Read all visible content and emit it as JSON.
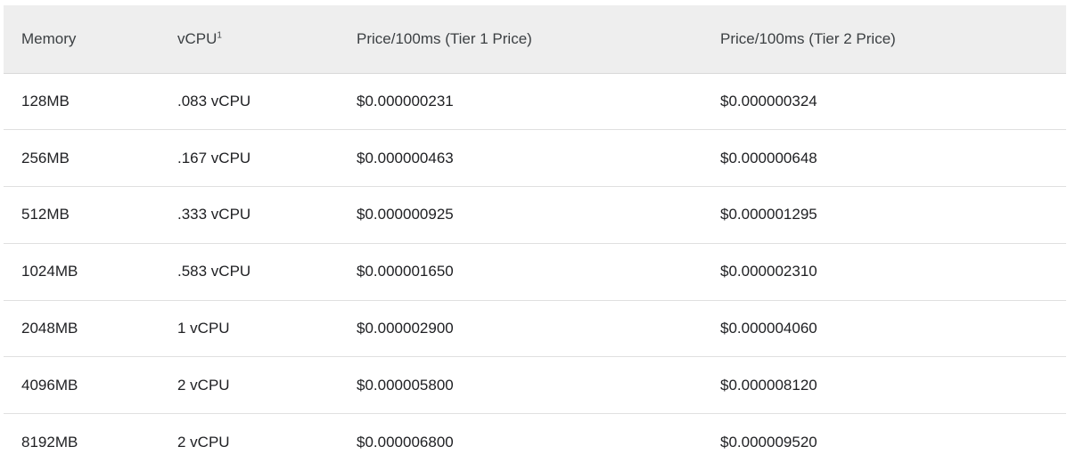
{
  "table": {
    "headers": {
      "memory": "Memory",
      "vcpu": "vCPU",
      "vcpu_footnote": "1",
      "tier1": "Price/100ms (Tier 1 Price)",
      "tier2": "Price/100ms (Tier 2 Price)"
    },
    "rows": [
      {
        "memory": "128MB",
        "vcpu": ".083 vCPU",
        "tier1": "$0.000000231",
        "tier2": "$0.000000324"
      },
      {
        "memory": "256MB",
        "vcpu": ".167 vCPU",
        "tier1": "$0.000000463",
        "tier2": "$0.000000648"
      },
      {
        "memory": "512MB",
        "vcpu": ".333 vCPU",
        "tier1": "$0.000000925",
        "tier2": "$0.000001295"
      },
      {
        "memory": "1024MB",
        "vcpu": ".583 vCPU",
        "tier1": "$0.000001650",
        "tier2": "$0.000002310"
      },
      {
        "memory": "2048MB",
        "vcpu": "1 vCPU",
        "tier1": "$0.000002900",
        "tier2": "$0.000004060"
      },
      {
        "memory": "4096MB",
        "vcpu": "2 vCPU",
        "tier1": "$0.000005800",
        "tier2": "$0.000008120"
      },
      {
        "memory": "8192MB",
        "vcpu": "2 vCPU",
        "tier1": "$0.000006800",
        "tier2": "$0.000009520"
      }
    ]
  }
}
